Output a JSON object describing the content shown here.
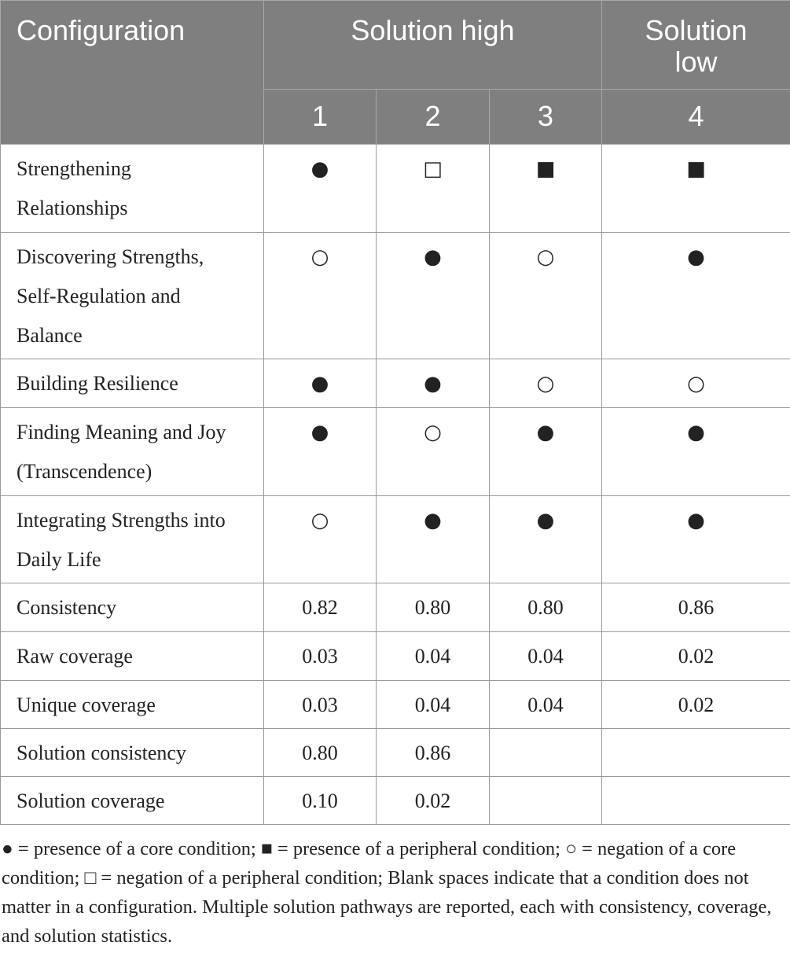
{
  "header": {
    "title": "Configuration",
    "groups": [
      "Solution high",
      "Solution low"
    ],
    "columns": [
      "1",
      "2",
      "3",
      "4"
    ]
  },
  "table": {
    "rows": [
      {
        "label": "Strengthening Relationships",
        "cells": [
          "●",
          "□",
          "■",
          "■"
        ]
      },
      {
        "label": "Discovering Strengths, Self-Regulation and Balance",
        "cells": [
          "○",
          "●",
          "○",
          "●"
        ]
      },
      {
        "label": "Building Resilience",
        "cells": [
          "●",
          "●",
          "○",
          "○"
        ]
      },
      {
        "label": "Finding Meaning and Joy (Transcendence)",
        "cells": [
          "●",
          "○",
          "●",
          "●"
        ]
      },
      {
        "label": "Integrating Strengths into Daily Life",
        "cells": [
          "○",
          "●",
          "●",
          "●"
        ]
      },
      {
        "label": "Consistency",
        "cells": [
          "0.82",
          "0.80",
          "0.80",
          "0.86"
        ]
      },
      {
        "label": "Raw coverage",
        "cells": [
          "0.03",
          "0.04",
          "0.04",
          "0.02"
        ]
      },
      {
        "label": "Unique coverage",
        "cells": [
          "0.03",
          "0.04",
          "0.04",
          "0.02"
        ]
      },
      {
        "label": "Solution consistency",
        "cells": [
          "0.80",
          "0.86"
        ]
      },
      {
        "label": "Solution coverage",
        "cells": [
          "0.10",
          "0.02"
        ]
      }
    ]
  },
  "footnote": "● = presence of a core condition; ■ = presence of a peripheral condition; ○ = negation of a core condition; □ = negation of a peripheral condition; Blank spaces indicate that a condition does not matter in a configuration. Multiple solution pathways are reported, each with consistency, coverage, and solution statistics."
}
